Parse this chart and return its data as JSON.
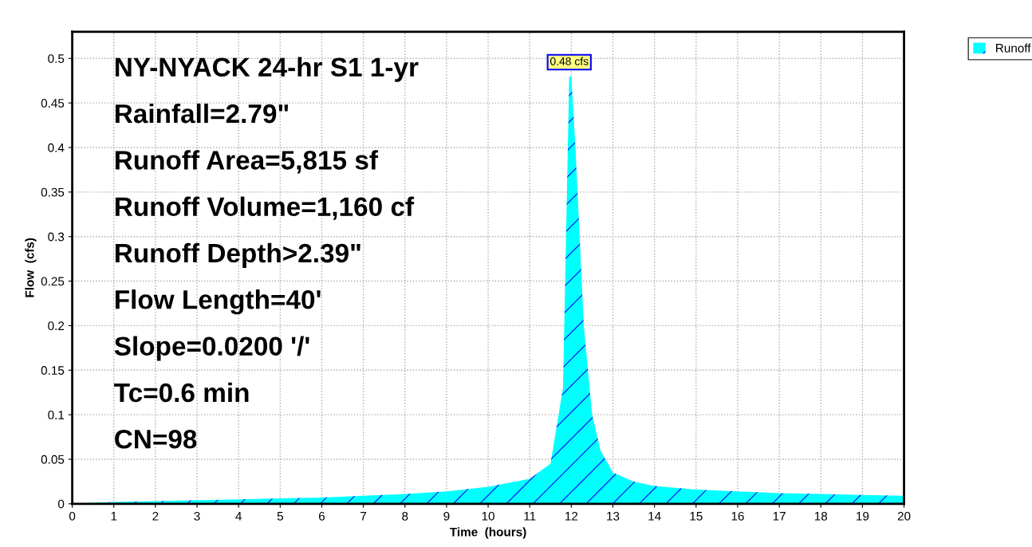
{
  "chart_data": {
    "type": "area",
    "xlabel": "Time  (hours)",
    "ylabel": "Flow  (cfs)",
    "x": [
      0,
      1,
      2,
      3,
      4,
      5,
      6,
      7,
      8,
      9,
      10,
      11,
      11.5,
      11.8,
      11.95,
      12.0,
      12.1,
      12.3,
      12.5,
      12.7,
      13,
      13.5,
      14,
      15,
      16,
      17,
      18,
      19,
      20
    ],
    "series": [
      {
        "name": "Runoff",
        "color": "#00ffff",
        "values": [
          0,
          0.002,
          0.003,
          0.004,
          0.005,
          0.006,
          0.007,
          0.009,
          0.011,
          0.014,
          0.019,
          0.028,
          0.045,
          0.13,
          0.48,
          0.48,
          0.4,
          0.2,
          0.1,
          0.06,
          0.035,
          0.025,
          0.02,
          0.016,
          0.014,
          0.012,
          0.011,
          0.01,
          0.009
        ]
      }
    ],
    "xlim": [
      0,
      20
    ],
    "ylim": [
      0,
      0.53
    ],
    "xticks": [
      0,
      1,
      2,
      3,
      4,
      5,
      6,
      7,
      8,
      9,
      10,
      11,
      12,
      13,
      14,
      15,
      16,
      17,
      18,
      19,
      20
    ],
    "yticks": [
      0,
      0.05,
      0.1,
      0.15,
      0.2,
      0.25,
      0.3,
      0.35,
      0.4,
      0.45,
      0.5
    ],
    "grid": true,
    "legend": "top right",
    "annotations": [
      {
        "text": "0.48 cfs",
        "x": 11.95,
        "y": 0.48
      },
      "NY-NYACK 24-hr S1 1-yr",
      "Rainfall=2.79\"",
      "Runoff Area=5,815 sf",
      "Runoff Volume=1,160 cf",
      "Runoff Depth>2.39\"",
      "Flow Length=40'",
      "Slope=0.0200 '/'",
      "Tc=0.6 min",
      "CN=98"
    ]
  }
}
